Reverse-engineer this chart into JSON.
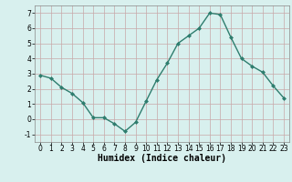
{
  "x": [
    0,
    1,
    2,
    3,
    4,
    5,
    6,
    7,
    8,
    9,
    10,
    11,
    12,
    13,
    14,
    15,
    16,
    17,
    18,
    19,
    20,
    21,
    22,
    23
  ],
  "y": [
    2.9,
    2.7,
    2.1,
    1.7,
    1.1,
    0.1,
    0.1,
    -0.3,
    -0.8,
    -0.2,
    1.2,
    2.6,
    3.7,
    5.0,
    5.5,
    6.0,
    7.0,
    6.9,
    5.4,
    4.0,
    3.5,
    3.1,
    2.2,
    1.4
  ],
  "line_color": "#2e7d6e",
  "marker": "D",
  "marker_size": 2,
  "bg_color": "#d8f0ee",
  "grid_color": "#c8a8a8",
  "xlabel": "Humidex (Indice chaleur)",
  "ylim": [
    -1.5,
    7.5
  ],
  "xlim": [
    -0.5,
    23.5
  ],
  "yticks": [
    -1,
    0,
    1,
    2,
    3,
    4,
    5,
    6,
    7
  ],
  "xticks": [
    0,
    1,
    2,
    3,
    4,
    5,
    6,
    7,
    8,
    9,
    10,
    11,
    12,
    13,
    14,
    15,
    16,
    17,
    18,
    19,
    20,
    21,
    22,
    23
  ],
  "tick_fontsize": 5.5,
  "xlabel_fontsize": 7.0,
  "linewidth": 1.0
}
